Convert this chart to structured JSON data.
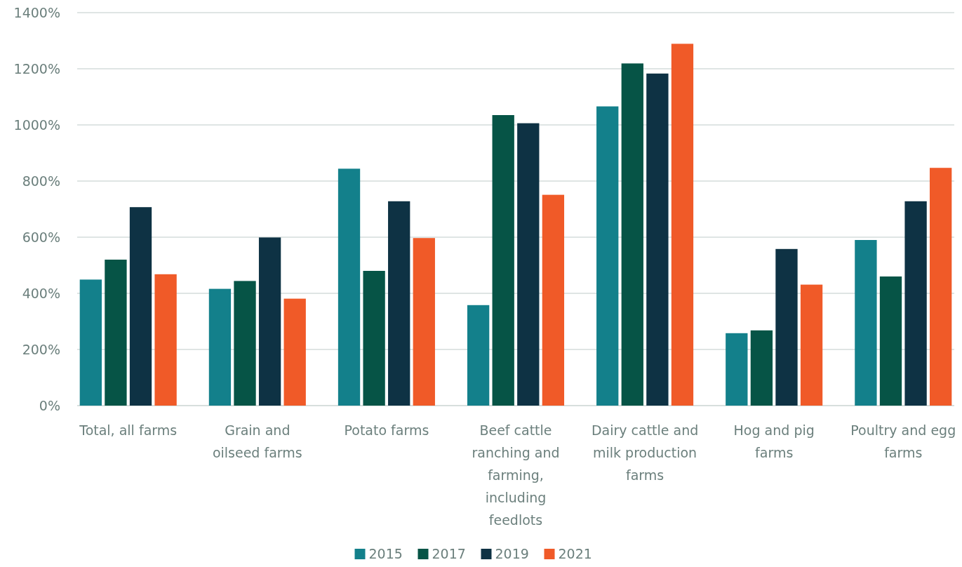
{
  "chart_data": {
    "type": "bar",
    "categories": [
      "Total, all farms",
      "Grain and oilseed farms",
      "Potato farms",
      "Beef cattle ranching and farming, including feedlots",
      "Dairy cattle and milk production farms",
      "Hog and pig farms",
      "Poultry and egg farms"
    ],
    "series": [
      {
        "name": "2015",
        "color": "#13808b",
        "values": [
          449,
          416,
          844,
          358,
          1066,
          258,
          590
        ]
      },
      {
        "name": "2017",
        "color": "#065446",
        "values": [
          520,
          444,
          480,
          1035,
          1219,
          268,
          460
        ]
      },
      {
        "name": "2019",
        "color": "#0e3244",
        "values": [
          707,
          599,
          728,
          1006,
          1183,
          558,
          728
        ]
      },
      {
        "name": "2021",
        "color": "#f05a28",
        "values": [
          468,
          381,
          597,
          751,
          1289,
          431,
          847
        ]
      }
    ],
    "ylim": [
      0,
      1400
    ],
    "yticks": [
      {
        "value": 0,
        "label": "0%"
      },
      {
        "value": 200,
        "label": "200%"
      },
      {
        "value": 400,
        "label": "400%"
      },
      {
        "value": 600,
        "label": "600%"
      },
      {
        "value": 800,
        "label": "800%"
      },
      {
        "value": 1000,
        "label": "1000%"
      },
      {
        "value": 1200,
        "label": "1200%"
      },
      {
        "value": 1400,
        "label": "1400%"
      }
    ],
    "grid": "y",
    "legend": "bottom"
  }
}
